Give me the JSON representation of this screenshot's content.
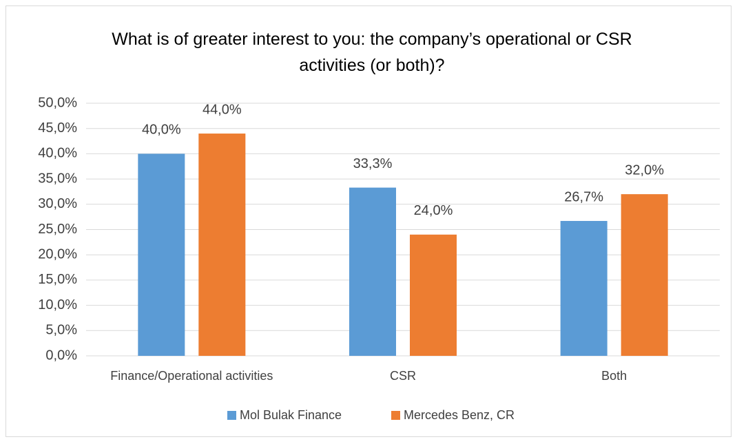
{
  "chart_data": {
    "type": "bar",
    "title": "What is of greater interest to you: the company’s operational or CSR activities (or both)?",
    "categories": [
      "Finance/Operational activities",
      "CSR",
      "Both"
    ],
    "series": [
      {
        "name": "Mol Bulak Finance",
        "color": "#5b9bd5",
        "values": [
          40.0,
          33.3,
          26.7
        ],
        "value_labels": [
          "40,0%",
          "33,3%",
          "26,7%"
        ]
      },
      {
        "name": "Mercedes Benz, CR",
        "color": "#ed7d31",
        "values": [
          44.0,
          24.0,
          32.0
        ],
        "value_labels": [
          "44,0%",
          "24,0%",
          "32,0%"
        ]
      }
    ],
    "ylim": [
      0,
      50
    ],
    "yticks": [
      {
        "value": 0,
        "label": "0,0%"
      },
      {
        "value": 5,
        "label": "5,0%"
      },
      {
        "value": 10,
        "label": "10,0%"
      },
      {
        "value": 15,
        "label": "15,0%"
      },
      {
        "value": 20,
        "label": "20,0%"
      },
      {
        "value": 25,
        "label": "25,0%"
      },
      {
        "value": 30,
        "label": "30,0%"
      },
      {
        "value": 35,
        "label": "35,0%"
      },
      {
        "value": 40,
        "label": "40,0%"
      },
      {
        "value": 45,
        "label": "45,0%"
      },
      {
        "value": 50,
        "label": "50,0%"
      }
    ],
    "grid": true,
    "legend": "bottom"
  }
}
